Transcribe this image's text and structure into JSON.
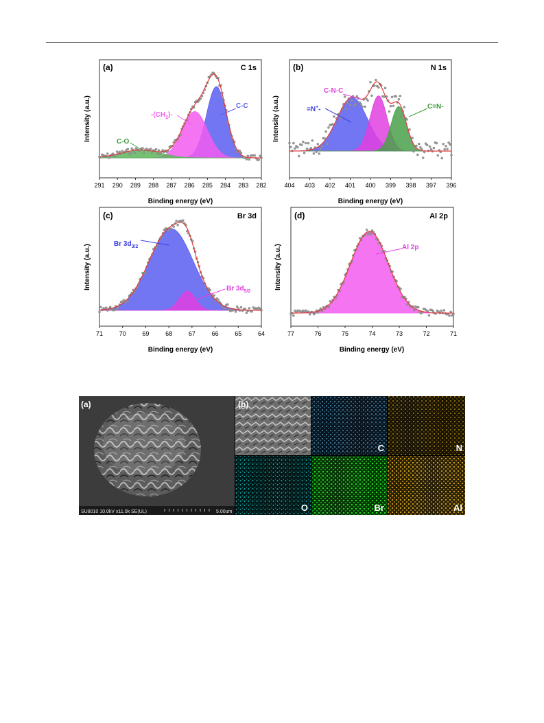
{
  "page": {
    "header_rule": true
  },
  "xps": {
    "panels": [
      {
        "id": "a",
        "label": "(a)",
        "element": "C 1s",
        "xlabel": "Binding energy (eV)",
        "ylabel": "Intensity (a.u.)",
        "xlim": [
          291,
          282
        ],
        "xticks": [
          "291",
          "290",
          "289",
          "288",
          "287",
          "286",
          "285",
          "284",
          "283",
          "282"
        ],
        "annotations": [
          "-(CH",
          "2",
          ")-",
          "C-C",
          "C-O"
        ],
        "peaks": [
          {
            "name": "C-C",
            "color": "#5a5ef0",
            "center": 284.5,
            "height": 0.8,
            "width": 0.55
          },
          {
            "name": "-(CH2)-",
            "color": "#f25cf0",
            "center": 285.7,
            "height": 0.52,
            "width": 0.7
          },
          {
            "name": "C-O",
            "color": "#5cb65c",
            "center": 288.7,
            "height": 0.09,
            "width": 1.1
          }
        ]
      },
      {
        "id": "b",
        "label": "(b)",
        "element": "N 1s",
        "xlabel": "Binding energy (eV)",
        "ylabel": "Intensity (a.u.)",
        "xlim": [
          404,
          396
        ],
        "xticks": [
          "404",
          "403",
          "402",
          "401",
          "400",
          "399",
          "398",
          "397",
          "396"
        ],
        "annotations": [
          "C-N-C",
          "=N",
          "+",
          "-",
          "C=N-"
        ],
        "peaks": [
          {
            "name": "=N+-",
            "color": "#5a5ef0",
            "center": 400.9,
            "height": 0.6,
            "width": 0.75
          },
          {
            "name": "C-N-C",
            "color": "#e040e0",
            "center": 399.6,
            "height": 0.62,
            "width": 0.42
          },
          {
            "name": "C=N-",
            "color": "#4aa04a",
            "center": 398.6,
            "height": 0.5,
            "width": 0.38
          }
        ]
      },
      {
        "id": "c",
        "label": "(c)",
        "element": "Br 3d",
        "xlabel": "Binding energy (eV)",
        "ylabel": "Intensity (a.u.)",
        "xlim": [
          71,
          64
        ],
        "xticks": [
          "71",
          "70",
          "69",
          "68",
          "67",
          "66",
          "65",
          "64"
        ],
        "annotations": [
          "Br 3d",
          "3/2",
          "Br 3d",
          "5/2"
        ],
        "peaks": [
          {
            "name": "Br 3d3/2",
            "color": "#5a5ef0",
            "center": 67.9,
            "height": 0.85,
            "width": 0.95
          },
          {
            "name": "Br 3d5/2",
            "color": "#e040e0",
            "center": 67.2,
            "height": 0.2,
            "width": 0.35
          }
        ]
      },
      {
        "id": "d",
        "label": "(d)",
        "element": "Al 2p",
        "xlabel": "Binding energy (eV)",
        "ylabel": "Intensity (a.u.)",
        "xlim": [
          77,
          71
        ],
        "xticks": [
          "77",
          "76",
          "75",
          "74",
          "73",
          "72",
          "71"
        ],
        "annotations": [
          "Al 2p"
        ],
        "peaks": [
          {
            "name": "Al 2p",
            "color": "#f25cf0",
            "center": 74.1,
            "height": 0.85,
            "width": 0.7
          }
        ]
      }
    ]
  },
  "sem": {
    "panel_a_label": "(a)",
    "panel_b_label": "(b)",
    "info_bar": "SU8010 10.0kV x11.0k SE(UL)",
    "scale_text": "5.00um",
    "maps": [
      {
        "element": "C",
        "color": "#5fb6dd"
      },
      {
        "element": "N",
        "color": "#d8a817"
      },
      {
        "element": "O",
        "color": "#17c6c9"
      },
      {
        "element": "Br",
        "color": "#22d022"
      },
      {
        "element": "Al",
        "color": "#d8a817"
      }
    ]
  }
}
